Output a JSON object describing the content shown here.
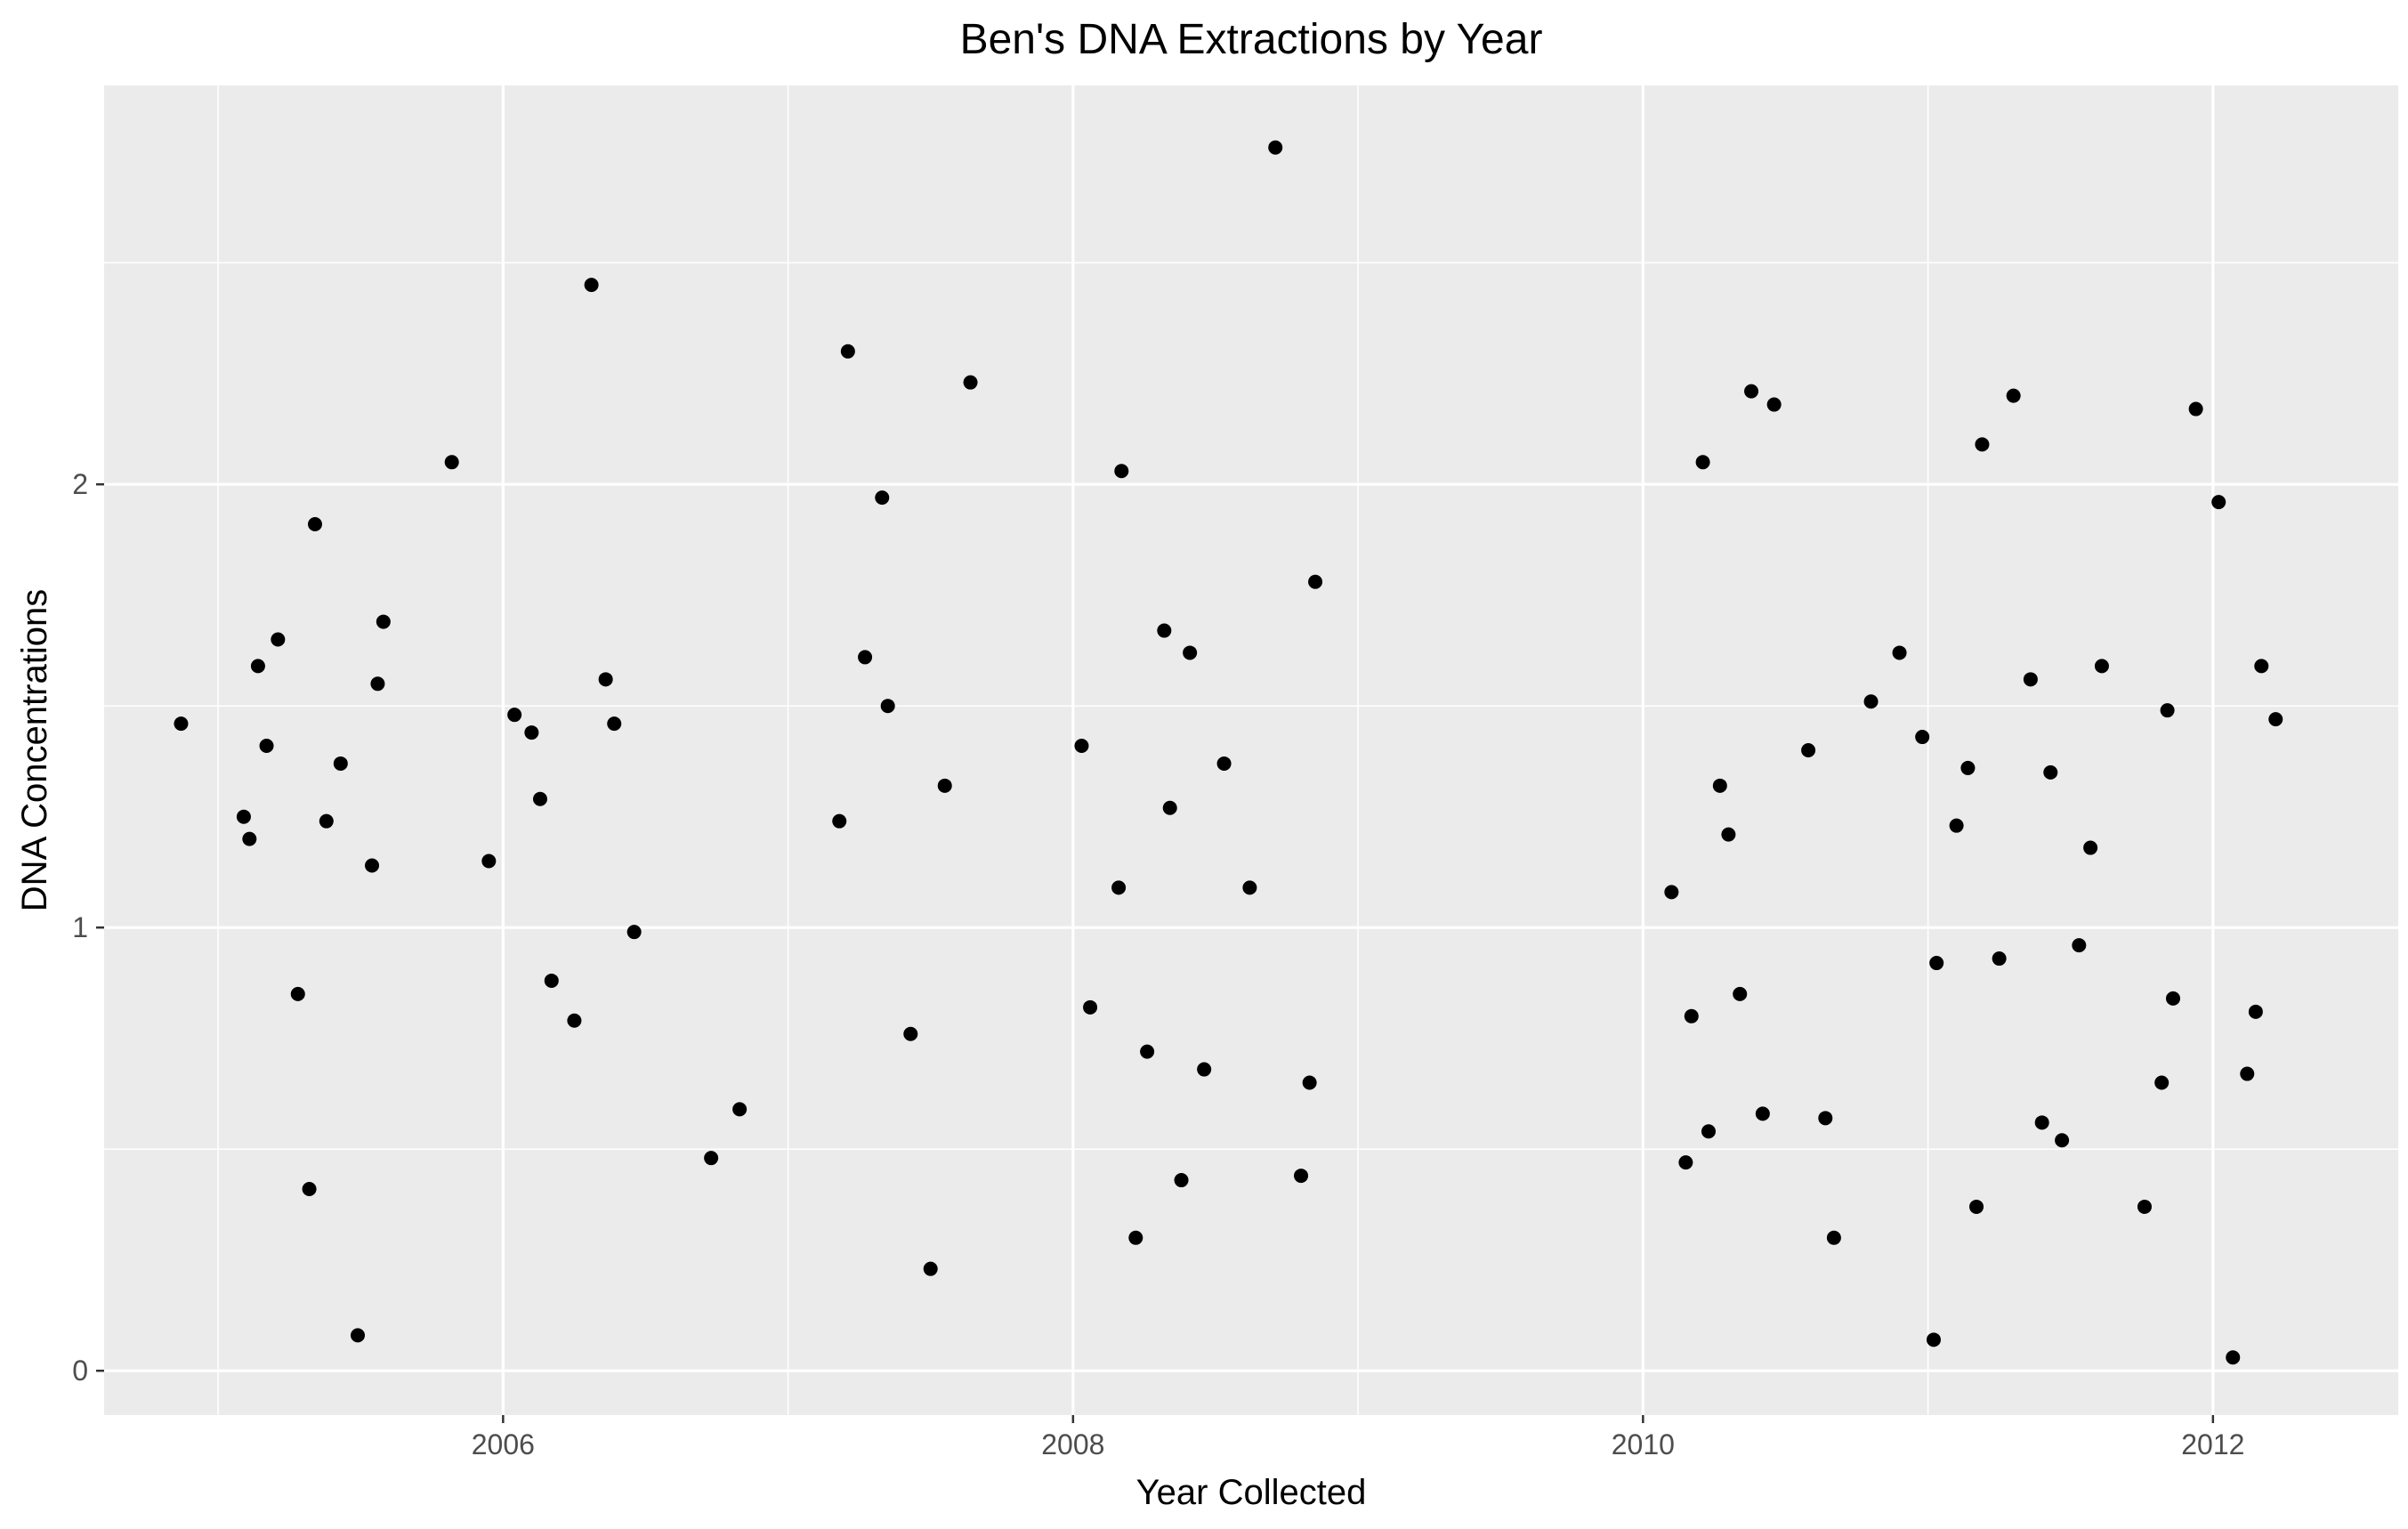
{
  "chart_data": {
    "type": "scatter",
    "title": "Ben's DNA Extractions by Year",
    "xlabel": "Year Collected",
    "ylabel": "DNA Concentrations",
    "xlim": [
      2004.6,
      2012.65
    ],
    "ylim": [
      -0.1,
      2.9
    ],
    "xticks": [
      2006,
      2008,
      2010,
      2012
    ],
    "yticks": [
      0,
      1,
      2
    ],
    "grid": true,
    "legend": "none",
    "colors": {
      "panel": "#EBEBEB",
      "grid": "#FFFFFF",
      "point": "#000000"
    },
    "points": [
      {
        "x": 2004.87,
        "y": 1.46
      },
      {
        "x": 2005.09,
        "y": 1.25
      },
      {
        "x": 2005.11,
        "y": 1.2
      },
      {
        "x": 2005.14,
        "y": 1.59
      },
      {
        "x": 2005.17,
        "y": 1.41
      },
      {
        "x": 2005.21,
        "y": 1.65
      },
      {
        "x": 2005.28,
        "y": 0.85
      },
      {
        "x": 2005.32,
        "y": 0.41
      },
      {
        "x": 2005.34,
        "y": 1.91
      },
      {
        "x": 2005.38,
        "y": 1.24
      },
      {
        "x": 2005.43,
        "y": 1.37
      },
      {
        "x": 2005.49,
        "y": 0.08
      },
      {
        "x": 2005.54,
        "y": 1.14
      },
      {
        "x": 2005.56,
        "y": 1.55
      },
      {
        "x": 2005.58,
        "y": 1.69
      },
      {
        "x": 2005.82,
        "y": 2.05
      },
      {
        "x": 2005.95,
        "y": 1.15
      },
      {
        "x": 2006.04,
        "y": 1.48
      },
      {
        "x": 2006.1,
        "y": 1.44
      },
      {
        "x": 2006.13,
        "y": 1.29
      },
      {
        "x": 2006.17,
        "y": 0.88
      },
      {
        "x": 2006.25,
        "y": 0.79
      },
      {
        "x": 2006.31,
        "y": 2.45
      },
      {
        "x": 2006.36,
        "y": 1.56
      },
      {
        "x": 2006.39,
        "y": 1.46
      },
      {
        "x": 2006.46,
        "y": 0.99
      },
      {
        "x": 2006.73,
        "y": 0.48
      },
      {
        "x": 2006.83,
        "y": 0.59
      },
      {
        "x": 2007.18,
        "y": 1.24
      },
      {
        "x": 2007.21,
        "y": 2.3
      },
      {
        "x": 2007.27,
        "y": 1.61
      },
      {
        "x": 2007.33,
        "y": 1.97
      },
      {
        "x": 2007.35,
        "y": 1.5
      },
      {
        "x": 2007.43,
        "y": 0.76
      },
      {
        "x": 2007.5,
        "y": 0.23
      },
      {
        "x": 2007.55,
        "y": 1.32
      },
      {
        "x": 2007.64,
        "y": 2.23
      },
      {
        "x": 2008.03,
        "y": 1.41
      },
      {
        "x": 2008.06,
        "y": 0.82
      },
      {
        "x": 2008.16,
        "y": 1.09
      },
      {
        "x": 2008.17,
        "y": 2.03
      },
      {
        "x": 2008.22,
        "y": 0.3
      },
      {
        "x": 2008.26,
        "y": 0.72
      },
      {
        "x": 2008.32,
        "y": 1.67
      },
      {
        "x": 2008.34,
        "y": 1.27
      },
      {
        "x": 2008.38,
        "y": 0.43
      },
      {
        "x": 2008.41,
        "y": 1.62
      },
      {
        "x": 2008.46,
        "y": 0.68
      },
      {
        "x": 2008.53,
        "y": 1.37
      },
      {
        "x": 2008.62,
        "y": 1.09
      },
      {
        "x": 2008.71,
        "y": 2.76
      },
      {
        "x": 2008.8,
        "y": 0.44
      },
      {
        "x": 2008.83,
        "y": 0.65
      },
      {
        "x": 2008.85,
        "y": 1.78
      },
      {
        "x": 2010.1,
        "y": 1.08
      },
      {
        "x": 2010.15,
        "y": 0.47
      },
      {
        "x": 2010.17,
        "y": 0.8
      },
      {
        "x": 2010.21,
        "y": 2.05
      },
      {
        "x": 2010.23,
        "y": 0.54
      },
      {
        "x": 2010.27,
        "y": 1.32
      },
      {
        "x": 2010.3,
        "y": 1.21
      },
      {
        "x": 2010.34,
        "y": 0.85
      },
      {
        "x": 2010.38,
        "y": 2.21
      },
      {
        "x": 2010.42,
        "y": 0.58
      },
      {
        "x": 2010.46,
        "y": 2.18
      },
      {
        "x": 2010.58,
        "y": 1.4
      },
      {
        "x": 2010.64,
        "y": 0.57
      },
      {
        "x": 2010.67,
        "y": 0.3
      },
      {
        "x": 2010.8,
        "y": 1.51
      },
      {
        "x": 2010.9,
        "y": 1.62
      },
      {
        "x": 2010.98,
        "y": 1.43
      },
      {
        "x": 2011.02,
        "y": 0.07
      },
      {
        "x": 2011.03,
        "y": 0.92
      },
      {
        "x": 2011.1,
        "y": 1.23
      },
      {
        "x": 2011.14,
        "y": 1.36
      },
      {
        "x": 2011.17,
        "y": 0.37
      },
      {
        "x": 2011.19,
        "y": 2.09
      },
      {
        "x": 2011.25,
        "y": 0.93
      },
      {
        "x": 2011.3,
        "y": 2.2
      },
      {
        "x": 2011.36,
        "y": 1.56
      },
      {
        "x": 2011.4,
        "y": 0.56
      },
      {
        "x": 2011.43,
        "y": 1.35
      },
      {
        "x": 2011.47,
        "y": 0.52
      },
      {
        "x": 2011.53,
        "y": 0.96
      },
      {
        "x": 2011.57,
        "y": 1.18
      },
      {
        "x": 2011.61,
        "y": 1.59
      },
      {
        "x": 2011.76,
        "y": 0.37
      },
      {
        "x": 2011.82,
        "y": 0.65
      },
      {
        "x": 2011.84,
        "y": 1.49
      },
      {
        "x": 2011.86,
        "y": 0.84
      },
      {
        "x": 2011.94,
        "y": 2.17
      },
      {
        "x": 2012.02,
        "y": 1.96
      },
      {
        "x": 2012.07,
        "y": 0.03
      },
      {
        "x": 2012.12,
        "y": 0.67
      },
      {
        "x": 2012.15,
        "y": 0.81
      },
      {
        "x": 2012.17,
        "y": 1.59
      },
      {
        "x": 2012.22,
        "y": 1.47
      }
    ]
  }
}
